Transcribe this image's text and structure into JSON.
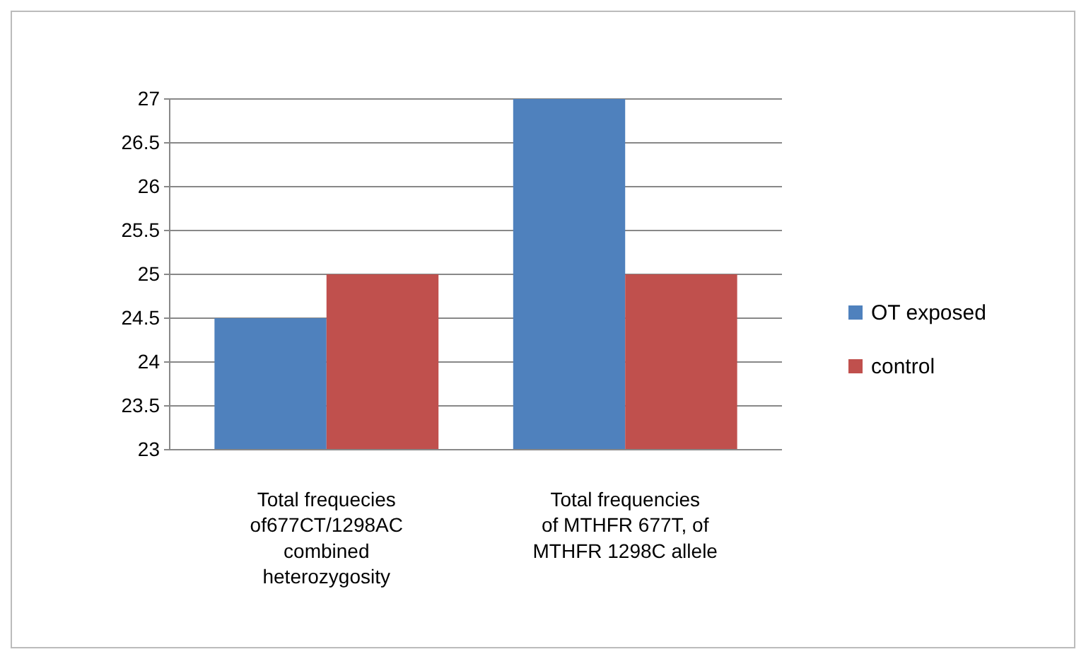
{
  "chart_data": {
    "type": "bar",
    "categories": [
      "Total frequecies of677CT/1298AC combined heterozygosity",
      "Total frequencies of MTHFR 677T, of MTHFR 1298C allele"
    ],
    "series": [
      {
        "name": "OT exposed",
        "color": "#4f81bd",
        "values": [
          24.5,
          27
        ]
      },
      {
        "name": "control",
        "color": "#c0504d",
        "values": [
          25,
          25
        ]
      }
    ],
    "ylim": [
      23,
      27
    ],
    "yticks": [
      23,
      23.5,
      24,
      24.5,
      25,
      25.5,
      26,
      26.5,
      27
    ],
    "grid": "y",
    "legend": "right"
  }
}
